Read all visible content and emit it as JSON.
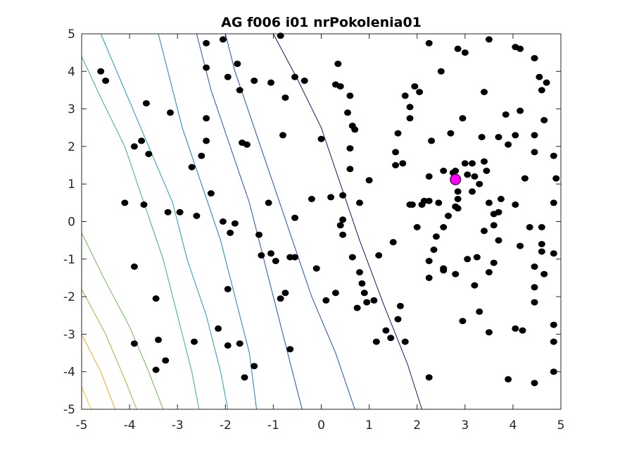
{
  "chart_data": {
    "type": "scatter",
    "title": "AG f006 i01 nrPokolenia01",
    "xlabel": "",
    "ylabel": "",
    "xlim": [
      -5,
      5
    ],
    "ylim": [
      -5,
      5
    ],
    "x_ticks": [
      "-5",
      "-4",
      "-3",
      "-2",
      "-1",
      "0",
      "1",
      "2",
      "3",
      "4",
      "5"
    ],
    "y_ticks": [
      "-5",
      "-4",
      "-3",
      "-2",
      "-1",
      "0",
      "1",
      "2",
      "3",
      "4",
      "5"
    ],
    "grid": false,
    "legend": "none",
    "colors": {
      "points": "#000000",
      "best_point": "#ff00ff",
      "axes": "#262626",
      "contours": [
        "#1a1464",
        "#1f4fb4",
        "#1784c0",
        "#19a3b5",
        "#2fb396",
        "#6ab359",
        "#b0ab32",
        "#e0a91f",
        "#f2c51c"
      ]
    },
    "contours": [
      {
        "color_index": 0,
        "points": [
          [
            -1.0,
            5.0
          ],
          [
            -0.5,
            3.8
          ],
          [
            0.0,
            2.5
          ],
          [
            0.4,
            1.0
          ],
          [
            0.8,
            -0.5
          ],
          [
            1.3,
            -2.2
          ],
          [
            1.8,
            -3.8
          ],
          [
            2.1,
            -5.0
          ]
        ]
      },
      {
        "color_index": 1,
        "points": [
          [
            -2.0,
            5.0
          ],
          [
            -1.8,
            4.0
          ],
          [
            -1.4,
            2.5
          ],
          [
            -1.0,
            1.0
          ],
          [
            -0.6,
            -0.5
          ],
          [
            -0.2,
            -2.0
          ],
          [
            0.3,
            -3.5
          ],
          [
            0.7,
            -5.0
          ]
        ]
      },
      {
        "color_index": 1,
        "points": [
          [
            -2.6,
            5.0
          ],
          [
            -2.3,
            3.5
          ],
          [
            -1.9,
            2.0
          ],
          [
            -1.5,
            0.5
          ],
          [
            -1.2,
            -1.0
          ],
          [
            -0.9,
            -2.5
          ],
          [
            -0.6,
            -4.0
          ],
          [
            -0.4,
            -5.0
          ]
        ]
      },
      {
        "color_index": 2,
        "points": [
          [
            -3.4,
            5.0
          ],
          [
            -3.2,
            4.0
          ],
          [
            -2.9,
            2.5
          ],
          [
            -2.5,
            1.0
          ],
          [
            -2.1,
            -0.5
          ],
          [
            -1.8,
            -2.0
          ],
          [
            -1.5,
            -3.5
          ],
          [
            -1.35,
            -5.0
          ]
        ]
      },
      {
        "color_index": 3,
        "points": [
          [
            -4.6,
            5.0
          ],
          [
            -4.1,
            3.5
          ],
          [
            -3.6,
            2.0
          ],
          [
            -3.1,
            0.5
          ],
          [
            -2.8,
            -1.0
          ],
          [
            -2.4,
            -2.5
          ],
          [
            -2.1,
            -4.0
          ],
          [
            -1.95,
            -5.0
          ]
        ]
      },
      {
        "color_index": 4,
        "points": [
          [
            -5.0,
            4.4
          ],
          [
            -4.6,
            3.3
          ],
          [
            -4.1,
            2.0
          ],
          [
            -3.7,
            0.5
          ],
          [
            -3.3,
            -1.0
          ],
          [
            -3.0,
            -2.5
          ],
          [
            -2.7,
            -4.0
          ],
          [
            -2.55,
            -5.0
          ]
        ]
      },
      {
        "color_index": 5,
        "points": [
          [
            -5.0,
            -0.3
          ],
          [
            -4.5,
            -1.6
          ],
          [
            -4.0,
            -2.8
          ],
          [
            -3.6,
            -4.0
          ],
          [
            -3.3,
            -5.0
          ]
        ]
      },
      {
        "color_index": 6,
        "points": [
          [
            -5.0,
            -1.8
          ],
          [
            -4.5,
            -3.0
          ],
          [
            -4.1,
            -4.2
          ],
          [
            -3.85,
            -5.0
          ]
        ]
      },
      {
        "color_index": 7,
        "points": [
          [
            -5.0,
            -3.0
          ],
          [
            -4.6,
            -4.0
          ],
          [
            -4.3,
            -5.0
          ]
        ]
      },
      {
        "color_index": 8,
        "points": [
          [
            -5.0,
            -4.4
          ],
          [
            -4.8,
            -5.0
          ]
        ]
      }
    ],
    "series": [
      {
        "values": [
          [
            -4.6,
            4.0
          ],
          [
            -4.5,
            3.75
          ],
          [
            -3.65,
            3.15
          ],
          [
            -3.75,
            2.15
          ],
          [
            -3.9,
            2.0
          ],
          [
            -3.6,
            1.8
          ],
          [
            -3.15,
            2.9
          ],
          [
            -4.1,
            0.5
          ],
          [
            -3.7,
            0.45
          ],
          [
            -3.2,
            0.25
          ],
          [
            -2.95,
            0.25
          ],
          [
            -2.6,
            0.15
          ],
          [
            -2.7,
            1.45
          ],
          [
            -2.5,
            1.75
          ],
          [
            -2.4,
            2.15
          ],
          [
            -2.4,
            2.75
          ],
          [
            -2.4,
            4.1
          ],
          [
            -2.4,
            4.75
          ],
          [
            -2.05,
            4.85
          ],
          [
            -1.75,
            4.2
          ],
          [
            -1.95,
            3.85
          ],
          [
            -1.7,
            3.5
          ],
          [
            -1.4,
            3.75
          ],
          [
            -1.65,
            2.1
          ],
          [
            -1.55,
            2.05
          ],
          [
            -2.3,
            0.75
          ],
          [
            -2.05,
            0.0
          ],
          [
            -1.9,
            -0.3
          ],
          [
            -1.8,
            -0.05
          ],
          [
            -1.3,
            -0.35
          ],
          [
            -1.25,
            -0.9
          ],
          [
            -1.05,
            -0.85
          ],
          [
            -0.95,
            -1.05
          ],
          [
            -1.1,
            0.5
          ],
          [
            -1.05,
            3.7
          ],
          [
            -0.85,
            4.95
          ],
          [
            -0.75,
            3.3
          ],
          [
            -0.8,
            2.3
          ],
          [
            -0.55,
            3.85
          ],
          [
            -0.35,
            3.75
          ],
          [
            -0.55,
            -0.95
          ],
          [
            -0.65,
            -0.95
          ],
          [
            -0.55,
            0.1
          ],
          [
            -0.2,
            0.6
          ],
          [
            0.0,
            2.2
          ],
          [
            0.35,
            4.2
          ],
          [
            0.3,
            3.65
          ],
          [
            0.4,
            3.6
          ],
          [
            0.6,
            3.35
          ],
          [
            0.55,
            2.9
          ],
          [
            0.65,
            2.55
          ],
          [
            0.7,
            2.45
          ],
          [
            0.6,
            1.95
          ],
          [
            0.6,
            1.4
          ],
          [
            0.2,
            0.65
          ],
          [
            0.45,
            0.7
          ],
          [
            0.45,
            0.05
          ],
          [
            0.4,
            -0.1
          ],
          [
            0.45,
            -0.35
          ],
          [
            1.0,
            1.1
          ],
          [
            0.8,
            0.5
          ],
          [
            -0.1,
            -1.25
          ],
          [
            0.1,
            -2.1
          ],
          [
            0.3,
            -1.9
          ],
          [
            0.65,
            -0.95
          ],
          [
            0.8,
            -1.35
          ],
          [
            0.85,
            -1.65
          ],
          [
            0.9,
            -1.9
          ],
          [
            0.95,
            -2.15
          ],
          [
            0.75,
            -2.3
          ],
          [
            1.1,
            -2.1
          ],
          [
            1.2,
            -0.9
          ],
          [
            1.35,
            -2.9
          ],
          [
            1.45,
            -3.1
          ],
          [
            1.15,
            -3.2
          ],
          [
            1.75,
            -3.2
          ],
          [
            1.6,
            -2.6
          ],
          [
            1.65,
            -2.25
          ],
          [
            1.5,
            -0.55
          ],
          [
            -0.65,
            -3.4
          ],
          [
            -0.75,
            -1.9
          ],
          [
            -0.85,
            -2.05
          ],
          [
            -1.4,
            -3.85
          ],
          [
            -1.6,
            -4.15
          ],
          [
            -1.7,
            -3.25
          ],
          [
            -1.95,
            -3.3
          ],
          [
            -2.15,
            -2.85
          ],
          [
            -1.95,
            -1.8
          ],
          [
            -2.65,
            -3.2
          ],
          [
            -3.25,
            -3.7
          ],
          [
            -3.4,
            -3.15
          ],
          [
            -3.45,
            -3.95
          ],
          [
            -3.45,
            -2.05
          ],
          [
            -3.9,
            -1.2
          ],
          [
            -3.9,
            -3.25
          ],
          [
            2.25,
            4.75
          ],
          [
            2.5,
            4.0
          ],
          [
            2.85,
            4.6
          ],
          [
            3.0,
            4.5
          ],
          [
            3.5,
            4.85
          ],
          [
            4.05,
            4.65
          ],
          [
            4.15,
            4.6
          ],
          [
            4.45,
            4.35
          ],
          [
            4.55,
            3.85
          ],
          [
            4.7,
            3.7
          ],
          [
            4.6,
            3.5
          ],
          [
            3.4,
            3.45
          ],
          [
            2.05,
            3.45
          ],
          [
            1.95,
            3.6
          ],
          [
            1.75,
            3.35
          ],
          [
            1.85,
            3.05
          ],
          [
            1.85,
            2.75
          ],
          [
            1.6,
            2.35
          ],
          [
            2.3,
            2.15
          ],
          [
            2.7,
            2.35
          ],
          [
            2.95,
            2.75
          ],
          [
            3.35,
            2.25
          ],
          [
            3.7,
            2.25
          ],
          [
            3.85,
            2.85
          ],
          [
            4.15,
            2.95
          ],
          [
            4.05,
            2.3
          ],
          [
            3.9,
            2.05
          ],
          [
            4.45,
            2.3
          ],
          [
            4.65,
            2.7
          ],
          [
            4.45,
            1.85
          ],
          [
            4.85,
            1.75
          ],
          [
            4.9,
            1.15
          ],
          [
            4.85,
            0.5
          ],
          [
            1.7,
            1.55
          ],
          [
            1.55,
            1.85
          ],
          [
            1.55,
            1.5
          ],
          [
            2.25,
            1.2
          ],
          [
            2.55,
            1.35
          ],
          [
            2.8,
            1.35
          ],
          [
            2.75,
            1.3
          ],
          [
            3.0,
            1.55
          ],
          [
            3.15,
            1.55
          ],
          [
            3.05,
            1.25
          ],
          [
            3.2,
            1.2
          ],
          [
            3.4,
            1.6
          ],
          [
            3.45,
            1.35
          ],
          [
            3.3,
            1.0
          ],
          [
            3.15,
            0.8
          ],
          [
            2.85,
            0.8
          ],
          [
            2.85,
            0.6
          ],
          [
            2.25,
            0.55
          ],
          [
            2.1,
            0.45
          ],
          [
            1.9,
            0.45
          ],
          [
            1.85,
            0.45
          ],
          [
            2.15,
            0.55
          ],
          [
            2.45,
            0.5
          ],
          [
            2.8,
            0.4
          ],
          [
            2.85,
            0.35
          ],
          [
            2.65,
            0.15
          ],
          [
            2.55,
            -0.15
          ],
          [
            2.0,
            -0.15
          ],
          [
            2.4,
            -0.4
          ],
          [
            2.35,
            -0.75
          ],
          [
            2.25,
            -1.05
          ],
          [
            2.55,
            -1.25
          ],
          [
            2.55,
            -1.3
          ],
          [
            2.25,
            -1.5
          ],
          [
            2.8,
            -1.4
          ],
          [
            3.05,
            -1.0
          ],
          [
            3.25,
            -0.95
          ],
          [
            3.3,
            -2.4
          ],
          [
            2.95,
            -2.65
          ],
          [
            3.2,
            -1.7
          ],
          [
            3.5,
            -1.35
          ],
          [
            3.6,
            -1.1
          ],
          [
            3.6,
            -0.1
          ],
          [
            3.7,
            -0.5
          ],
          [
            3.4,
            -0.25
          ],
          [
            3.5,
            0.5
          ],
          [
            3.6,
            0.2
          ],
          [
            3.7,
            0.25
          ],
          [
            3.75,
            0.6
          ],
          [
            4.05,
            0.45
          ],
          [
            4.25,
            1.15
          ],
          [
            4.35,
            -0.15
          ],
          [
            4.6,
            -0.15
          ],
          [
            4.6,
            -0.6
          ],
          [
            4.15,
            -0.65
          ],
          [
            4.6,
            -0.8
          ],
          [
            4.85,
            -0.85
          ],
          [
            4.45,
            -1.2
          ],
          [
            4.65,
            -1.4
          ],
          [
            4.45,
            -1.75
          ],
          [
            4.45,
            -2.15
          ],
          [
            4.85,
            -2.75
          ],
          [
            4.05,
            -2.85
          ],
          [
            4.2,
            -2.9
          ],
          [
            4.85,
            -3.2
          ],
          [
            4.85,
            -4.0
          ],
          [
            4.45,
            -4.3
          ],
          [
            3.9,
            -4.2
          ],
          [
            3.5,
            -2.95
          ],
          [
            2.25,
            -4.15
          ]
        ]
      }
    ],
    "best_point": [
      2.8,
      1.12
    ]
  }
}
